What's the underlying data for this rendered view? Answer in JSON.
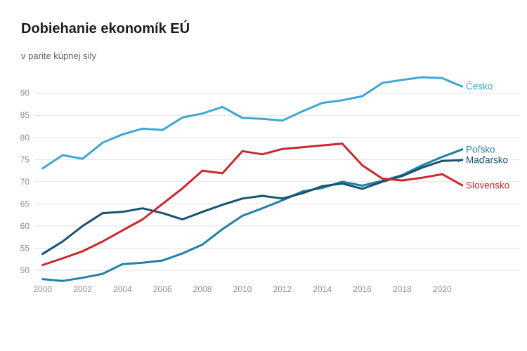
{
  "page": {
    "background": "#ffffff"
  },
  "header": {
    "title": "Dobiehanie ekonomík EÚ",
    "subtitle": "v parite kúpnej sily"
  },
  "chart_data": {
    "type": "line",
    "title": "Dobiehanie ekonomík EÚ",
    "subtitle": "v parite kúpnej sily",
    "x": [
      2000,
      2001,
      2002,
      2003,
      2004,
      2005,
      2006,
      2007,
      2008,
      2009,
      2010,
      2011,
      2012,
      2013,
      2014,
      2015,
      2016,
      2017,
      2018,
      2019,
      2020,
      2021
    ],
    "x_tick_labels": [
      "2000",
      "2002",
      "2004",
      "2006",
      "2008",
      "2010",
      "2012",
      "2014",
      "2016",
      "2018",
      "2020"
    ],
    "y_ticks": [
      50,
      55,
      60,
      65,
      70,
      75,
      80,
      85,
      90
    ],
    "ylim": [
      47,
      95
    ],
    "xlim": [
      2000,
      2021
    ],
    "grid": "horizontal",
    "gridline_color": "#e2e2e2",
    "axis_label_color": "#8f8f8f",
    "legend_position": "line-end-right",
    "series": [
      {
        "name": "Česko",
        "slug": "cesko",
        "color": "#40a6d5",
        "leader_dash": false,
        "values": [
          73.0,
          76.0,
          75.2,
          78.8,
          80.7,
          82.0,
          81.7,
          84.5,
          85.4,
          86.9,
          84.4,
          84.2,
          83.8,
          85.9,
          87.8,
          88.4,
          89.3,
          92.3,
          93.0,
          93.6,
          93.4,
          91.5
        ]
      },
      {
        "name": "Poľsko",
        "slug": "polsko",
        "color": "#2080a8",
        "leader_dash": true,
        "values": [
          48.0,
          47.6,
          48.3,
          49.2,
          51.4,
          51.7,
          52.2,
          53.8,
          55.8,
          59.3,
          62.3,
          64.0,
          65.8,
          67.8,
          68.6,
          70.0,
          69.1,
          70.2,
          71.5,
          73.7,
          75.6,
          77.3
        ]
      },
      {
        "name": "Maďarsko",
        "slug": "madarsko",
        "color": "#19536f",
        "leader_dash": true,
        "values": [
          53.7,
          56.5,
          60.0,
          62.9,
          63.2,
          64.0,
          62.9,
          61.5,
          63.2,
          64.8,
          66.2,
          66.8,
          66.2,
          67.4,
          69.0,
          69.6,
          68.4,
          70.0,
          71.3,
          73.2,
          74.7,
          74.9
        ]
      },
      {
        "name": "Slovensko",
        "slug": "slovensko",
        "color": "#c8292e",
        "leader_dash": false,
        "values": [
          51.2,
          52.7,
          54.3,
          56.5,
          59.0,
          61.5,
          65.0,
          68.5,
          72.5,
          71.9,
          76.9,
          76.2,
          77.4,
          77.8,
          78.2,
          78.6,
          73.7,
          70.7,
          70.3,
          70.9,
          71.7,
          69.2
        ]
      }
    ]
  }
}
